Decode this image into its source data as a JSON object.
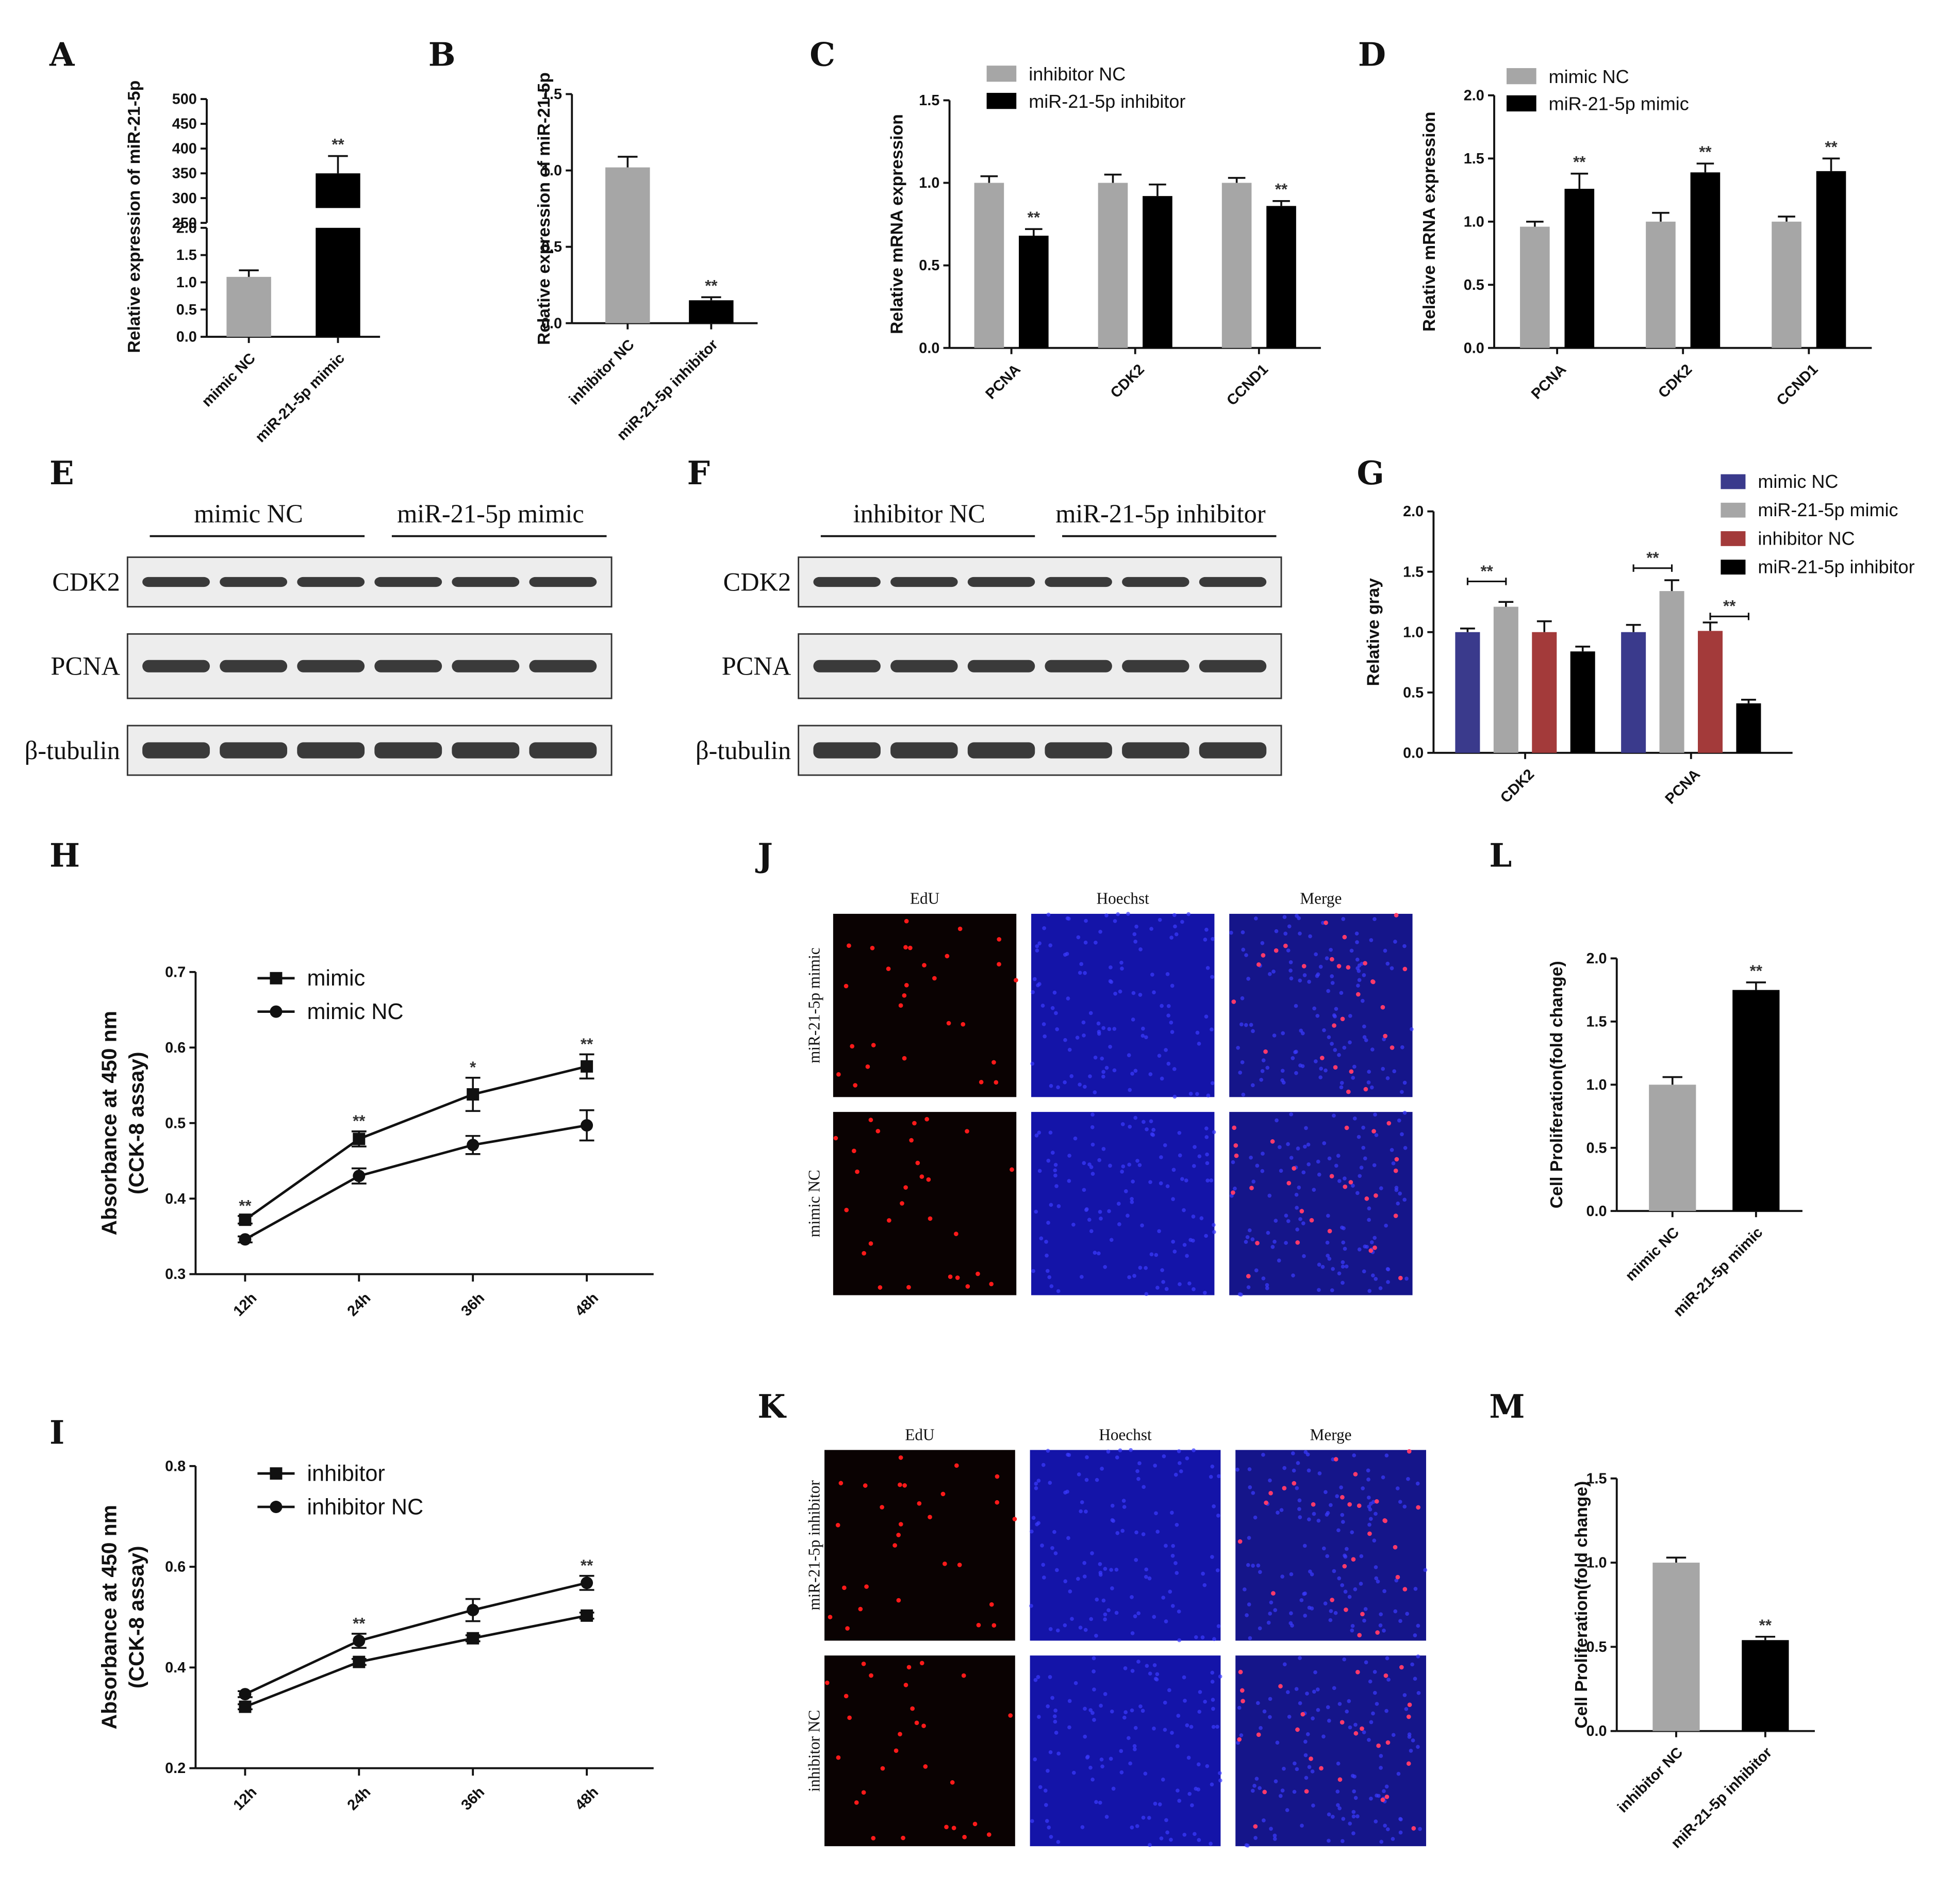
{
  "panels": {
    "A": "A",
    "B": "B",
    "C": "C",
    "D": "D",
    "E": "E",
    "F": "F",
    "G": "G",
    "H": "H",
    "I": "I",
    "J": "J",
    "K": "K",
    "L": "L",
    "M": "M"
  },
  "colors": {
    "gray": "#a6a6a6",
    "black": "#000000",
    "navy": "#3a3a8c",
    "red": "#a33a3a"
  },
  "chart_data": [
    {
      "panel": "A",
      "type": "bar",
      "axis_break": true,
      "ylabel": "Relative expression of miR-21-5p",
      "categories": [
        "mimic NC",
        "miR-21-5p mimic"
      ],
      "values": [
        1.1,
        350
      ],
      "errors": [
        0.12,
        35
      ],
      "significance": [
        "",
        "**"
      ],
      "lower_ticks": [
        "0.0",
        "0.5",
        "1.0",
        "1.5",
        "2.0"
      ],
      "upper_ticks": [
        "250",
        "300",
        "350",
        "400",
        "450",
        "500"
      ]
    },
    {
      "panel": "B",
      "type": "bar",
      "ylabel": "Relative expression of miR-21-5p",
      "categories": [
        "inhibitor NC",
        "miR-21-5p inhibitor"
      ],
      "values": [
        1.02,
        0.15
      ],
      "errors": [
        0.07,
        0.02
      ],
      "significance": [
        "",
        "**"
      ],
      "ylim": [
        0,
        1.5
      ],
      "yticks": [
        "0.0",
        "0.5",
        "1.0",
        "1.5"
      ]
    },
    {
      "panel": "C",
      "type": "bar",
      "ylabel": "Relative mRNA expression",
      "categories": [
        "PCNA",
        "CDK2",
        "CCND1"
      ],
      "series": [
        {
          "name": "inhibitor NC",
          "values": [
            1.0,
            1.0,
            1.0
          ],
          "errors": [
            0.04,
            0.05,
            0.03
          ]
        },
        {
          "name": "miR-21-5p inhibitor",
          "values": [
            0.68,
            0.92,
            0.86
          ],
          "errors": [
            0.04,
            0.07,
            0.03
          ]
        }
      ],
      "significance": [
        "**",
        "",
        "**"
      ],
      "ylim": [
        0,
        1.5
      ],
      "yticks": [
        "0.0",
        "0.5",
        "1.0",
        "1.5"
      ]
    },
    {
      "panel": "D",
      "type": "bar",
      "ylabel": "Relative mRNA expression",
      "categories": [
        "PCNA",
        "CDK2",
        "CCND1"
      ],
      "series": [
        {
          "name": "mimic NC",
          "values": [
            0.96,
            1.0,
            1.0
          ],
          "errors": [
            0.04,
            0.07,
            0.04
          ]
        },
        {
          "name": "miR-21-5p mimic",
          "values": [
            1.26,
            1.39,
            1.4
          ],
          "errors": [
            0.12,
            0.07,
            0.1
          ]
        }
      ],
      "significance": [
        "**",
        "**",
        "**"
      ],
      "ylim": [
        0,
        2.0
      ],
      "yticks": [
        "0.0",
        "0.5",
        "1.0",
        "1.5",
        "2.0"
      ]
    },
    {
      "panel": "G",
      "type": "bar",
      "ylabel": "Relative gray",
      "categories": [
        "CDK2",
        "PCNA"
      ],
      "series": [
        {
          "name": "mimic NC",
          "values": [
            1.0,
            1.0
          ],
          "errors": [
            0.03,
            0.06
          ]
        },
        {
          "name": "miR-21-5p mimic",
          "values": [
            1.21,
            1.34
          ],
          "errors": [
            0.04,
            0.09
          ]
        },
        {
          "name": "inhibitor NC",
          "values": [
            1.0,
            1.01
          ],
          "errors": [
            0.09,
            0.07
          ]
        },
        {
          "name": "miR-21-5p inhibitor",
          "values": [
            0.84,
            0.41
          ],
          "errors": [
            0.04,
            0.03
          ]
        }
      ],
      "brackets": [
        "**",
        "**",
        "**"
      ],
      "ylim": [
        0,
        2.0
      ],
      "yticks": [
        "0.0",
        "0.5",
        "1.0",
        "1.5",
        "2.0"
      ]
    },
    {
      "panel": "H",
      "type": "line",
      "ylabel": "Absorbance at 450 nm",
      "ylabel2": "(CCK-8 assay)",
      "x": [
        "12h",
        "24h",
        "36h",
        "48h"
      ],
      "series": [
        {
          "name": "mimic",
          "marker": "square",
          "values": [
            0.372,
            0.479,
            0.538,
            0.575
          ],
          "errors": [
            0.005,
            0.01,
            0.022,
            0.016
          ]
        },
        {
          "name": "mimic NC",
          "marker": "circle",
          "values": [
            0.346,
            0.43,
            0.471,
            0.497
          ],
          "errors": [
            0.004,
            0.01,
            0.012,
            0.02
          ]
        }
      ],
      "significance": [
        "**",
        "**",
        "*",
        "**"
      ],
      "ylim": [
        0.3,
        0.7
      ],
      "yticks": [
        "0.3",
        "0.4",
        "0.5",
        "0.6",
        "0.7"
      ]
    },
    {
      "panel": "I",
      "type": "line",
      "ylabel": "Absorbance at 450 nm",
      "ylabel2": "(CCK-8 assay)",
      "x": [
        "12h",
        "24h",
        "36h",
        "48h"
      ],
      "series": [
        {
          "name": "inhibitor",
          "marker": "square",
          "values": [
            0.322,
            0.411,
            0.458,
            0.503
          ],
          "errors": [
            0.005,
            0.006,
            0.006,
            0.006
          ]
        },
        {
          "name": "inhibitor NC",
          "marker": "circle",
          "values": [
            0.347,
            0.453,
            0.514,
            0.568
          ],
          "errors": [
            0.006,
            0.014,
            0.022,
            0.014
          ]
        }
      ],
      "significance": [
        "",
        "**",
        "",
        "**"
      ],
      "ylim": [
        0.2,
        0.8
      ],
      "yticks": [
        "0.2",
        "0.4",
        "0.6",
        "0.8"
      ]
    },
    {
      "panel": "L",
      "type": "bar",
      "ylabel": "Cell Proliferation(fold change)",
      "categories": [
        "mimic NC",
        "miR-21-5p mimic"
      ],
      "values": [
        1.0,
        1.75
      ],
      "errors": [
        0.06,
        0.06
      ],
      "significance": [
        "",
        "**"
      ],
      "ylim": [
        0,
        2.0
      ],
      "yticks": [
        "0.0",
        "0.5",
        "1.0",
        "1.5",
        "2.0"
      ]
    },
    {
      "panel": "M",
      "type": "bar",
      "ylabel": "Cell Proliferation(fold change)",
      "categories": [
        "inhibitor NC",
        "miR-21-5p inhibitor"
      ],
      "values": [
        1.0,
        0.54
      ],
      "errors": [
        0.03,
        0.02
      ],
      "significance": [
        "",
        "**"
      ],
      "ylim": [
        0,
        1.5
      ],
      "yticks": [
        "0.0",
        "0.5",
        "1.0",
        "1.5"
      ]
    }
  ],
  "blots": {
    "E": {
      "groups": [
        "mimic NC",
        "miR-21-5p mimic"
      ],
      "rows": [
        "CDK2",
        "PCNA",
        "β-tubulin"
      ]
    },
    "F": {
      "groups": [
        "inhibitor NC",
        "miR-21-5p inhibitor"
      ],
      "rows": [
        "CDK2",
        "PCNA",
        "β-tubulin"
      ]
    }
  },
  "images": {
    "J": {
      "columns": [
        "EdU",
        "Hoechst",
        "Merge"
      ],
      "rows": [
        "miR-21-5p mimic",
        "mimic NC"
      ]
    },
    "K": {
      "columns": [
        "EdU",
        "Hoechst",
        "Merge"
      ],
      "rows": [
        "miR-21-5p inhibitor",
        "inhibitor NC"
      ]
    }
  }
}
